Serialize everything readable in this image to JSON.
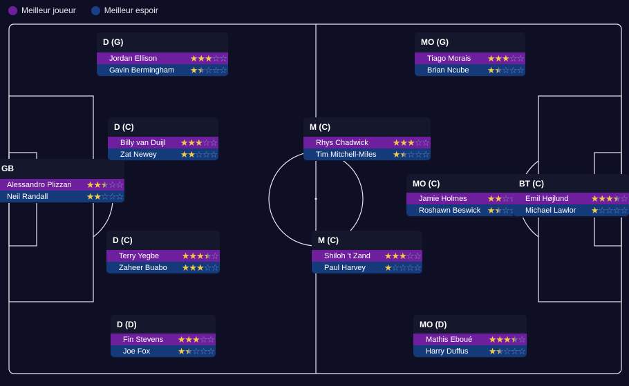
{
  "legend": {
    "best_label": "Meilleur joueur",
    "prospect_label": "Meilleur espoir",
    "best_color": "#6e1f9d",
    "prospect_color": "#143a7a"
  },
  "positions": [
    {
      "label": "GB",
      "best": {
        "name": "Alessandro Plizzari",
        "stars": 2.5
      },
      "prospect": {
        "name": "Neil Randall",
        "stars": 2
      }
    },
    {
      "label": "D (G)",
      "best": {
        "name": "Jordan Ellison",
        "stars": 3
      },
      "prospect": {
        "name": "Gavin Bermingham",
        "stars": 1.5
      }
    },
    {
      "label": "D (C)",
      "best": {
        "name": "Billy van Duijl",
        "stars": 3
      },
      "prospect": {
        "name": "Zat Newey",
        "stars": 2
      }
    },
    {
      "label": "D (C)",
      "best": {
        "name": "Terry Yegbe",
        "stars": 3.5
      },
      "prospect": {
        "name": "Zaheer Buabo",
        "stars": 3
      }
    },
    {
      "label": "D (D)",
      "best": {
        "name": "Fin Stevens",
        "stars": 3
      },
      "prospect": {
        "name": "Joe Fox",
        "stars": 1.5
      }
    },
    {
      "label": "M (C)",
      "best": {
        "name": "Rhys Chadwick",
        "stars": 3
      },
      "prospect": {
        "name": "Tim Mitchell-Miles",
        "stars": 1.5
      }
    },
    {
      "label": "M (C)",
      "best": {
        "name": "Shiloh 't Zand",
        "stars": 3
      },
      "prospect": {
        "name": "Paul Harvey",
        "stars": 1
      }
    },
    {
      "label": "MO (G)",
      "best": {
        "name": "Tiago Morais",
        "stars": 3
      },
      "prospect": {
        "name": "Brian Ncube",
        "stars": 1.5
      }
    },
    {
      "label": "MO (C)",
      "best": {
        "name": "Jamie Holmes",
        "stars": 2
      },
      "prospect": {
        "name": "Roshawn Beswick",
        "stars": 1.5
      }
    },
    {
      "label": "MO (D)",
      "best": {
        "name": "Mathis Eboué",
        "stars": 3.5
      },
      "prospect": {
        "name": "Harry Duffus",
        "stars": 1.5
      }
    },
    {
      "label": "BT (C)",
      "best": {
        "name": "Emil Højlund",
        "stars": 3.5
      },
      "prospect": {
        "name": "Michael Lawlor",
        "stars": 1
      }
    }
  ]
}
